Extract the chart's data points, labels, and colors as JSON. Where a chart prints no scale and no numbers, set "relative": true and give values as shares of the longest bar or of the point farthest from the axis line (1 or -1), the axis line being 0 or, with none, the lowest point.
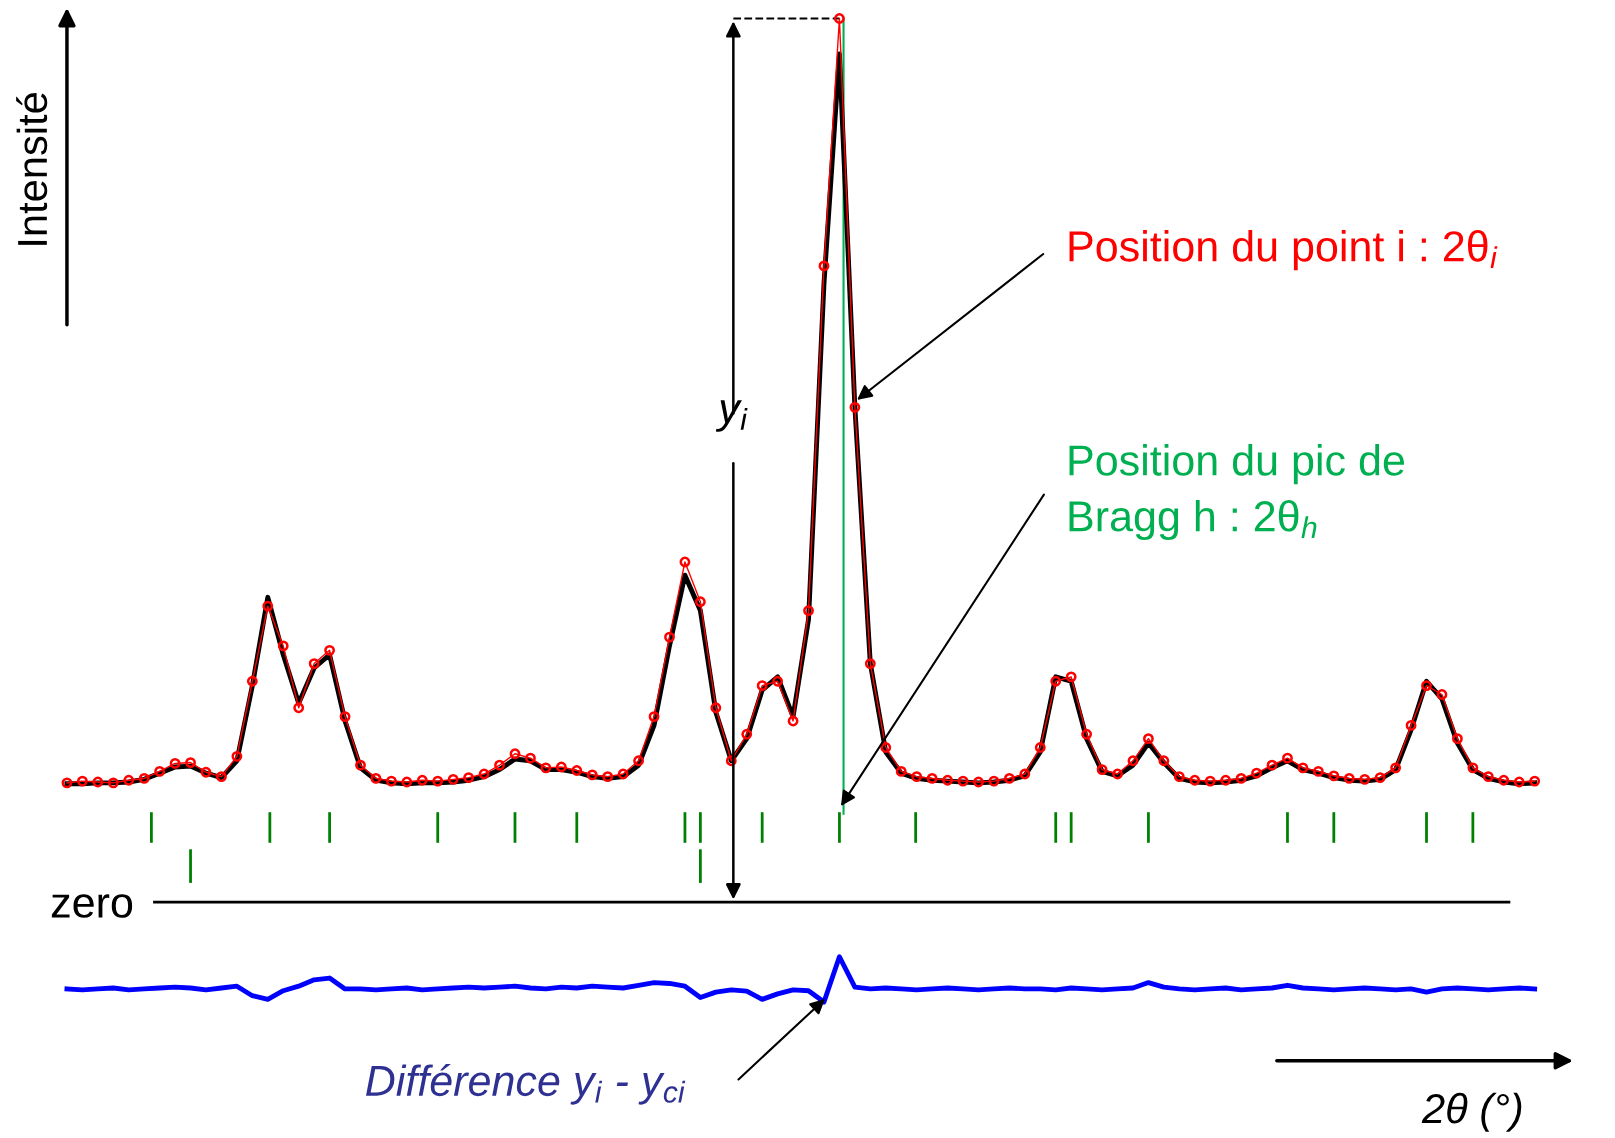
{
  "chart_data": [
    {
      "type": "line",
      "relative": true,
      "xlabel": "2θ (°)",
      "ylabel": "Intensité",
      "categories": [
        null,
        null,
        null,
        null,
        null,
        null,
        null,
        null,
        null,
        null,
        null,
        null,
        null,
        null,
        null,
        null,
        null,
        null,
        null,
        null,
        null,
        null,
        null,
        null,
        null,
        null,
        null,
        null,
        null,
        null,
        null,
        null,
        null,
        null,
        null,
        null,
        null,
        null,
        null,
        null,
        null,
        null,
        null,
        null,
        null,
        null,
        null,
        null,
        null,
        null,
        null,
        null,
        null,
        null,
        null,
        null,
        null,
        null,
        null,
        null,
        null,
        null,
        null,
        null,
        null,
        null,
        null,
        null,
        null,
        null,
        null,
        null,
        null,
        null,
        null,
        null,
        null,
        null,
        null,
        null,
        null,
        null,
        null,
        null,
        null,
        null,
        null,
        null,
        null,
        null,
        null,
        null,
        null,
        null,
        null,
        null
      ],
      "series": [
        {
          "type": "line",
          "color": "#000000",
          "values": [
            0.134,
            0.134,
            0.135,
            0.135,
            0.136,
            0.139,
            0.146,
            0.153,
            0.154,
            0.146,
            0.141,
            0.16,
            0.245,
            0.345,
            0.28,
            0.225,
            0.265,
            0.28,
            0.205,
            0.152,
            0.138,
            0.135,
            0.134,
            0.135,
            0.135,
            0.136,
            0.138,
            0.142,
            0.15,
            0.162,
            0.16,
            0.15,
            0.15,
            0.147,
            0.142,
            0.14,
            0.142,
            0.155,
            0.2,
            0.29,
            0.37,
            0.33,
            0.215,
            0.16,
            0.185,
            0.24,
            0.255,
            0.21,
            0.32,
            0.7,
            0.96,
            0.56,
            0.27,
            0.17,
            0.146,
            0.14,
            0.138,
            0.137,
            0.136,
            0.135,
            0.136,
            0.138,
            0.143,
            0.17,
            0.255,
            0.25,
            0.185,
            0.148,
            0.143,
            0.155,
            0.18,
            0.158,
            0.14,
            0.136,
            0.135,
            0.136,
            0.138,
            0.143,
            0.152,
            0.16,
            0.15,
            0.146,
            0.141,
            0.138,
            0.137,
            0.139,
            0.15,
            0.195,
            0.25,
            0.23,
            0.18,
            0.15,
            0.14,
            0.136,
            0.134,
            0.135
          ]
        },
        {
          "type": "line",
          "marker": "circle",
          "color": "#ff0000",
          "values": [
            0.135,
            0.137,
            0.136,
            0.135,
            0.138,
            0.14,
            0.148,
            0.157,
            0.158,
            0.147,
            0.142,
            0.165,
            0.25,
            0.335,
            0.29,
            0.22,
            0.27,
            0.285,
            0.21,
            0.155,
            0.14,
            0.137,
            0.136,
            0.138,
            0.137,
            0.139,
            0.141,
            0.145,
            0.155,
            0.168,
            0.163,
            0.152,
            0.153,
            0.149,
            0.144,
            0.142,
            0.145,
            0.16,
            0.21,
            0.3,
            0.385,
            0.34,
            0.22,
            0.16,
            0.19,
            0.245,
            0.25,
            0.205,
            0.33,
            0.72,
            1.0,
            0.56,
            0.27,
            0.175,
            0.148,
            0.142,
            0.14,
            0.138,
            0.137,
            0.136,
            0.137,
            0.14,
            0.145,
            0.175,
            0.25,
            0.255,
            0.19,
            0.15,
            0.145,
            0.16,
            0.185,
            0.16,
            0.142,
            0.138,
            0.137,
            0.138,
            0.14,
            0.146,
            0.155,
            0.163,
            0.152,
            0.148,
            0.143,
            0.14,
            0.139,
            0.141,
            0.152,
            0.2,
            0.245,
            0.235,
            0.185,
            0.152,
            0.142,
            0.138,
            0.136,
            0.137
          ]
        }
      ],
      "annotations": [
        "zero",
        "Position du point i : 2θ$_{i}$",
        "Position du pic de Bragg h : 2θ$_{h}$",
        "y$_{i}$"
      ]
    },
    {
      "type": "line",
      "relative": true,
      "categories": [
        null,
        null,
        null,
        null,
        null,
        null,
        null,
        null,
        null,
        null,
        null,
        null,
        null,
        null,
        null,
        null,
        null,
        null,
        null,
        null,
        null,
        null,
        null,
        null,
        null,
        null,
        null,
        null,
        null,
        null,
        null,
        null,
        null,
        null,
        null,
        null,
        null,
        null,
        null,
        null,
        null,
        null,
        null,
        null,
        null,
        null,
        null,
        null,
        null,
        null,
        null,
        null,
        null,
        null,
        null,
        null,
        null,
        null,
        null,
        null,
        null,
        null,
        null,
        null,
        null,
        null,
        null,
        null,
        null,
        null,
        null,
        null,
        null,
        null,
        null,
        null,
        null,
        null,
        null,
        null,
        null,
        null,
        null,
        null,
        null,
        null,
        null,
        null,
        null,
        null,
        null,
        null,
        null,
        null,
        null,
        null
      ],
      "series": [
        {
          "color": "#0000ff",
          "values": [
            0.29,
            0.27,
            0.29,
            0.31,
            0.27,
            0.29,
            0.31,
            0.33,
            0.31,
            0.27,
            0.31,
            0.35,
            0.14,
            0.06,
            0.25,
            0.35,
            0.49,
            0.53,
            0.29,
            0.29,
            0.27,
            0.29,
            0.31,
            0.27,
            0.29,
            0.31,
            0.33,
            0.31,
            0.33,
            0.35,
            0.31,
            0.29,
            0.33,
            0.31,
            0.35,
            0.33,
            0.31,
            0.37,
            0.43,
            0.41,
            0.35,
            0.1,
            0.22,
            0.27,
            0.24,
            0.06,
            0.18,
            0.27,
            0.25,
            0,
            1,
            0.33,
            0.29,
            0.31,
            0.29,
            0.27,
            0.29,
            0.31,
            0.29,
            0.27,
            0.29,
            0.31,
            0.29,
            0.29,
            0.27,
            0.31,
            0.29,
            0.27,
            0.29,
            0.31,
            0.43,
            0.33,
            0.29,
            0.27,
            0.29,
            0.31,
            0.27,
            0.29,
            0.31,
            0.37,
            0.31,
            0.29,
            0.27,
            0.29,
            0.31,
            0.29,
            0.27,
            0.29,
            0.22,
            0.29,
            0.31,
            0.29,
            0.27,
            0.29,
            0.31,
            0.29
          ]
        }
      ],
      "annotations": [
        "Différence y$_{i}$ - y$_{ci}$"
      ]
    }
  ]
}
